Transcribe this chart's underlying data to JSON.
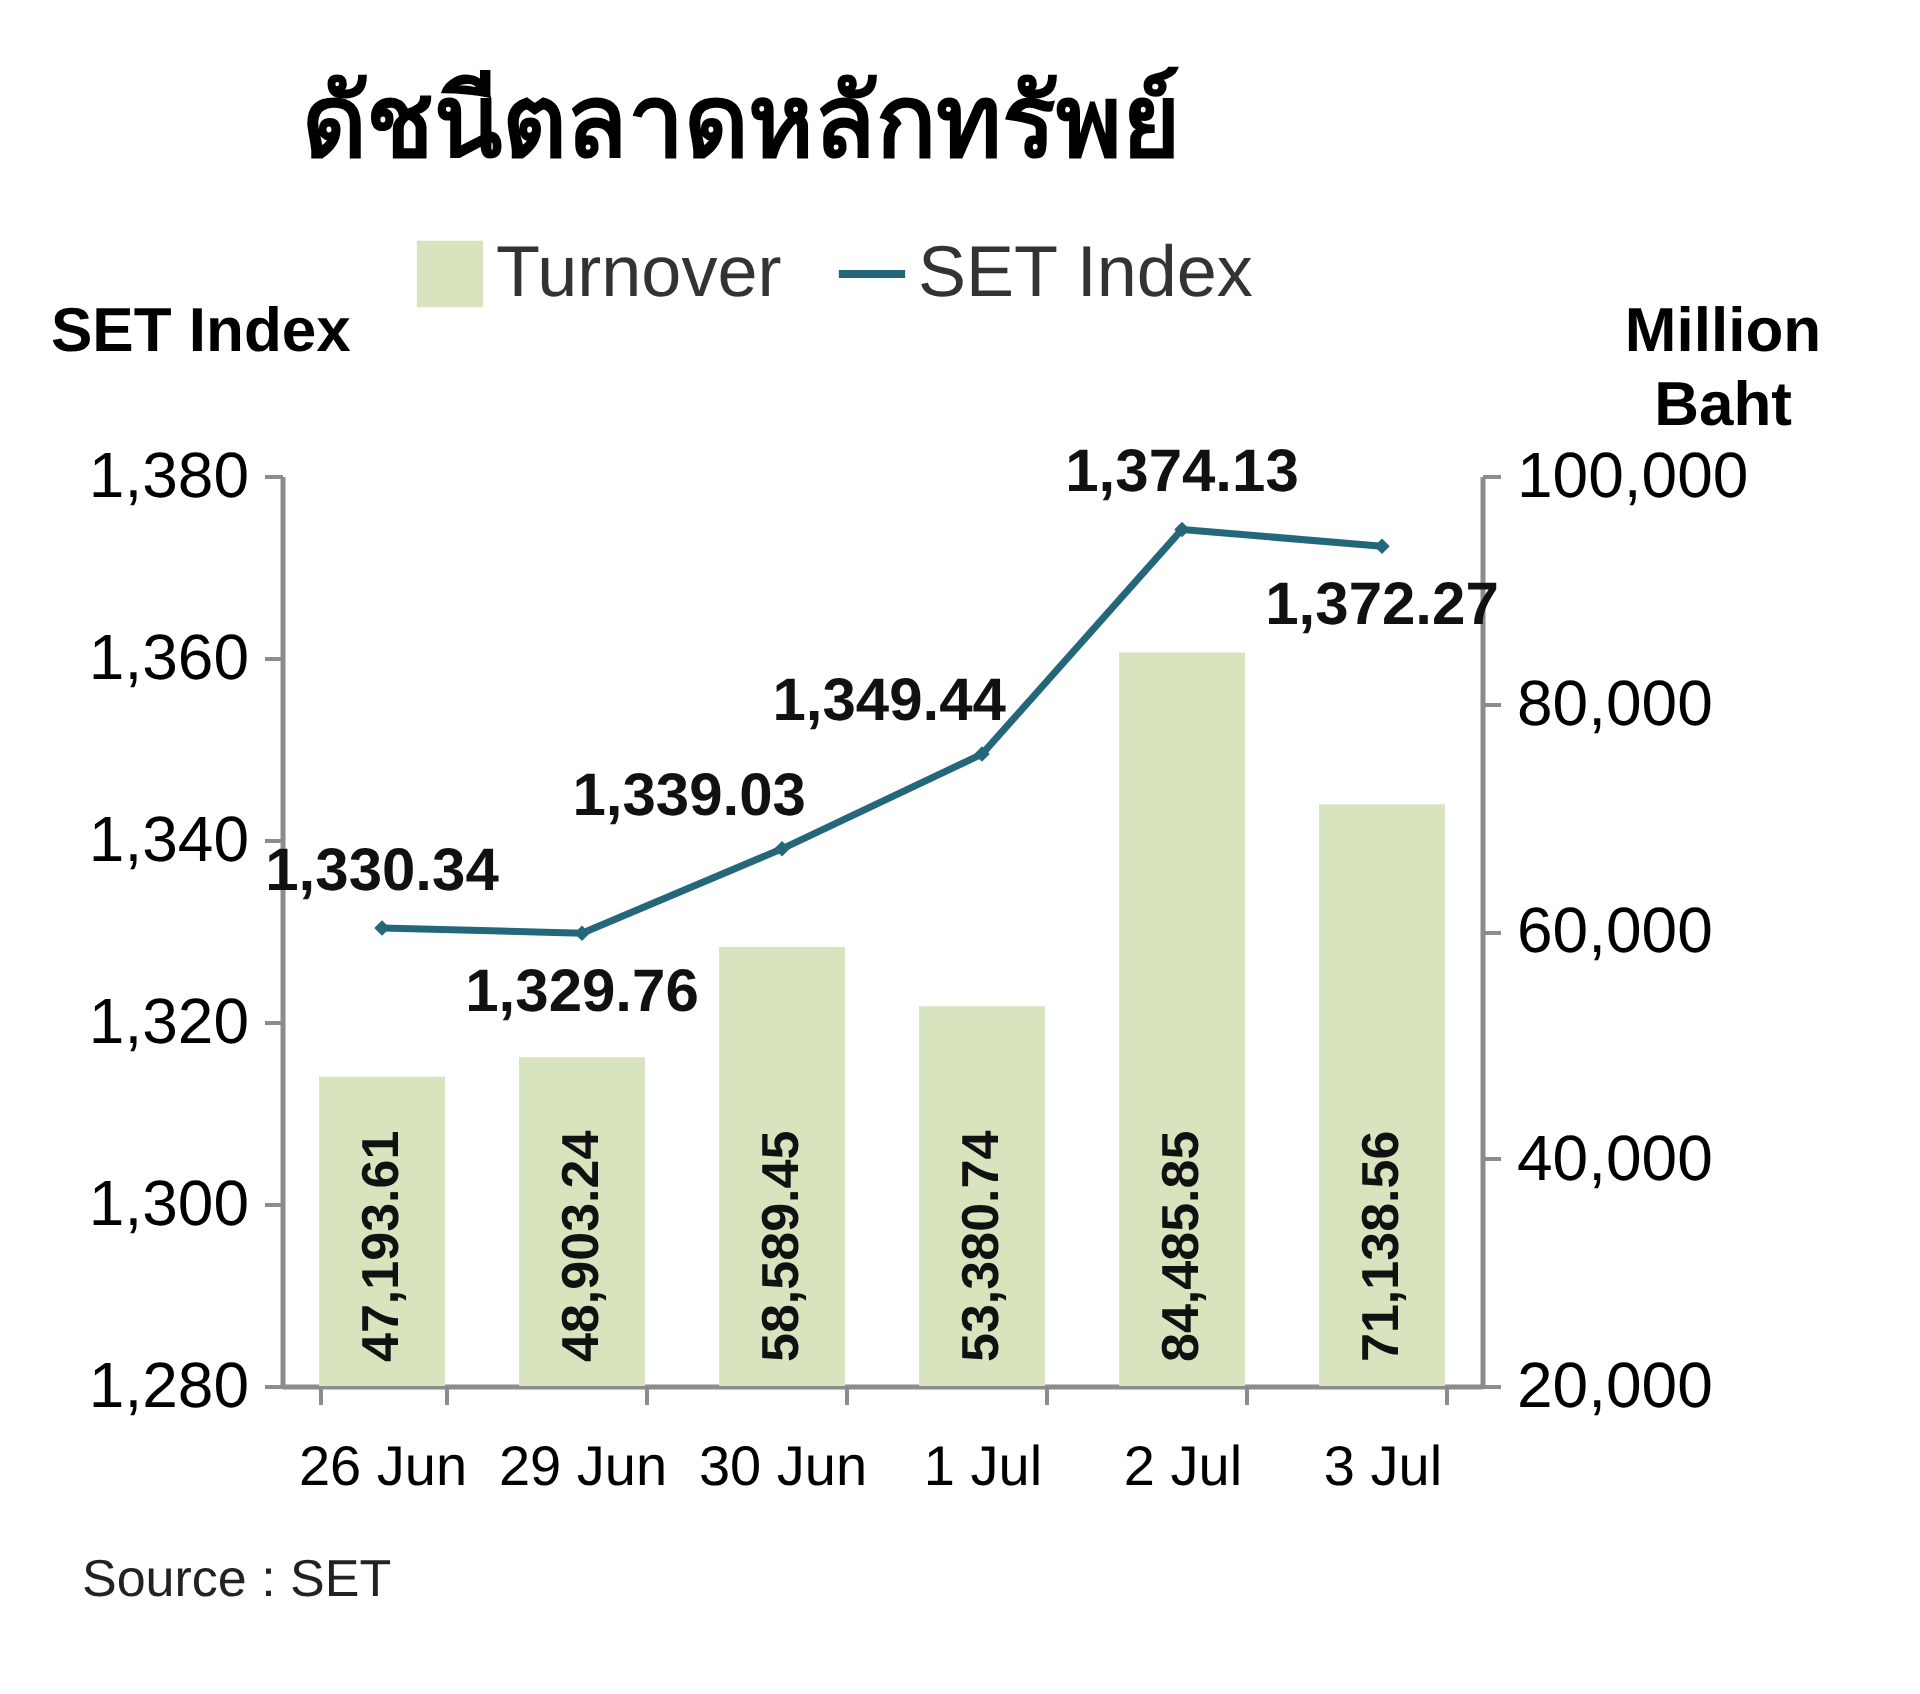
{
  "chart_data": {
    "type": "bar",
    "title": "ดัชนีตลาดหลักทรัพย์",
    "categories": [
      "26 Jun",
      "29 Jun",
      "30 Jun",
      "1 Jul",
      "2 Jul",
      "3 Jul"
    ],
    "series": [
      {
        "name": "Turnover",
        "axis": "y2",
        "color": "#d7e4bd",
        "values": [
          47193.61,
          48903.24,
          58589.45,
          53380.74,
          84485.85,
          71138.56
        ],
        "value_labels": [
          "47,193.61",
          "48,903.24",
          "58,589.45",
          "53,380.74",
          "84,485.85",
          "71,138.56"
        ]
      },
      {
        "name": "SET Index",
        "type": "line",
        "color": "#24677a",
        "values": [
          1330.34,
          1329.76,
          1339.03,
          1349.44,
          1374.13,
          1372.27
        ],
        "value_labels": [
          "1,330.34",
          "1,329.76",
          "1,339.03",
          "1,349.44",
          "1,374.13",
          "1,372.27"
        ]
      }
    ],
    "ylabel": "SET Index",
    "y2label": "Million Baht",
    "ylim": [
      1280,
      1380
    ],
    "yticks": [
      {
        "value": 1280,
        "label": "1,280"
      },
      {
        "value": 1300,
        "label": "1,300"
      },
      {
        "value": 1320,
        "label": "1,320"
      },
      {
        "value": 1340,
        "label": "1,340"
      },
      {
        "value": 1360,
        "label": "1,360"
      },
      {
        "value": 1380,
        "label": "1,380"
      }
    ],
    "y2lim": [
      20000,
      100000
    ],
    "y2ticks": [
      {
        "value": 20000,
        "label": "20,000"
      },
      {
        "value": 40000,
        "label": "40,000"
      },
      {
        "value": 60000,
        "label": "60,000"
      },
      {
        "value": 80000,
        "label": "80,000"
      },
      {
        "value": 100000,
        "label": "100,000"
      }
    ],
    "legend": "top",
    "marker": "diamond",
    "line_style": "solid",
    "annotations": [
      "Source : SET"
    ]
  }
}
